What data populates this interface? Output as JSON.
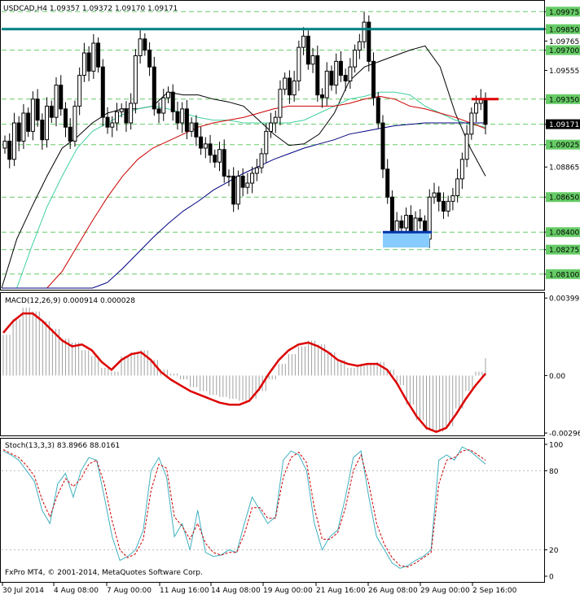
{
  "header": {
    "symbol_line": "USDCAD,H4  1.09357 1.09372 1.09170 1.09171"
  },
  "footer": {
    "copyright": "FxPro MT4, © 2001-2014, MetaQuotes Software Corp."
  },
  "colors": {
    "background": "#ffffff",
    "candle": "#000000",
    "ma_black": "#000000",
    "ma_teal": "#40d0a0",
    "ma_red": "#cc0000",
    "ma_blue": "#000080",
    "level_green": "#66cc66",
    "resistance": "#008080",
    "macd_hist": "#a0a0a0",
    "macd_signal": "#dd0000",
    "stoch_main": "#40b0c0",
    "stoch_signal": "#cc0000",
    "current_price_box": "#000000",
    "box_fill": "#88ccff"
  },
  "chart_data": [
    {
      "type": "candlestick",
      "name": "USDCAD,H4",
      "ylim": [
        1.08,
        1.1
      ],
      "price_labels": [
        "1.09975",
        "1.09850",
        "1.09765",
        "1.09700",
        "1.09555",
        "1.09350",
        "1.09171",
        "1.09025",
        "1.08865",
        "1.08650",
        "1.08400",
        "1.08275",
        "1.08100"
      ],
      "price_values": [
        1.09975,
        1.0985,
        1.09765,
        1.097,
        1.09555,
        1.0935,
        1.09171,
        1.09025,
        1.08865,
        1.0865,
        1.084,
        1.08275,
        1.081
      ],
      "highlighted_levels": [
        "1.09975",
        "1.09850",
        "1.09700",
        "1.09350",
        "1.09171",
        "1.09025",
        "1.08650",
        "1.08400",
        "1.08275",
        "1.08100"
      ],
      "current_price": "1.09171",
      "resistance_level": 1.0985,
      "support_box": {
        "top": 1.084,
        "bottom": 1.0829
      },
      "close_series": [
        1.0905,
        1.0892,
        1.0918,
        1.0905,
        1.0925,
        1.0912,
        1.0935,
        1.092,
        1.0906,
        1.093,
        1.0922,
        1.0945,
        1.0928,
        1.0915,
        1.0905,
        1.093,
        1.0952,
        1.0968,
        1.0955,
        1.0975,
        1.0958,
        1.0922,
        1.0915,
        1.0918,
        1.0926,
        1.0928,
        1.0918,
        1.0932,
        1.0966,
        1.0978,
        1.097,
        1.0958,
        1.0928,
        1.0925,
        1.0936,
        1.094,
        1.0926,
        1.0918,
        1.0928,
        1.0912,
        1.0918,
        1.0908,
        1.09,
        1.0903,
        1.0895,
        1.089,
        1.0899,
        1.088,
        1.088,
        1.086,
        1.088,
        1.0872,
        1.0875,
        1.0882,
        1.0886,
        1.0896,
        1.0912,
        1.0918,
        1.0922,
        1.0942,
        1.095,
        1.0938,
        1.0948,
        1.0972,
        1.098,
        1.096,
        1.0966,
        1.0938,
        1.0936,
        1.0955,
        1.0945,
        1.0962,
        1.0952,
        1.0948,
        1.0958,
        1.097,
        1.0976,
        1.099,
        1.0962,
        1.0936,
        1.0918,
        1.0885,
        1.0865,
        1.084,
        1.0848,
        1.0843,
        1.0852,
        1.084,
        1.085,
        1.0848,
        1.0835,
        1.0865,
        1.0868,
        1.0862,
        1.0855,
        1.0862,
        1.0866,
        1.0878,
        1.0892,
        1.091,
        1.0925,
        1.0932,
        1.0935,
        1.0917
      ],
      "moving_averages": [
        {
          "color_key": "ma_black",
          "values": [
            1.08,
            1.0835,
            1.0858,
            1.088,
            1.09,
            1.0908,
            1.0918,
            1.0925,
            1.0928,
            1.0928,
            1.093,
            1.094,
            1.0938,
            1.0938,
            1.0935,
            1.0933,
            1.093,
            1.092,
            1.091,
            1.0902,
            1.0903,
            1.091,
            1.0925,
            1.0948,
            1.0958,
            1.0962,
            1.0966,
            1.097,
            1.0973,
            1.0958,
            1.0925,
            1.09,
            1.088
          ]
        },
        {
          "color_key": "ma_teal",
          "values": [
            1.08,
            1.08,
            1.083,
            1.0858,
            1.088,
            1.09,
            1.0912,
            1.0918,
            1.0924,
            1.0928,
            1.093,
            1.0928,
            1.0925,
            1.0922,
            1.092,
            1.092,
            1.0918,
            1.0918,
            1.0918,
            1.0918,
            1.092,
            1.0925,
            1.093,
            1.0935,
            1.0937,
            1.094,
            1.094,
            1.0938,
            1.093,
            1.0925,
            1.092,
            1.0917,
            1.0915
          ]
        },
        {
          "color_key": "ma_red",
          "values": [
            1.08,
            1.08,
            1.08,
            1.08,
            1.0812,
            1.083,
            1.0848,
            1.0865,
            1.088,
            1.0892,
            1.09,
            1.0905,
            1.091,
            1.0915,
            1.0918,
            1.092,
            1.0922,
            1.0925,
            1.0928,
            1.093,
            1.093,
            1.093,
            1.093,
            1.0932,
            1.0935,
            1.0937,
            1.0935,
            1.093,
            1.0928,
            1.0925,
            1.0922,
            1.0918,
            1.0914
          ]
        },
        {
          "color_key": "ma_blue",
          "values": [
            1.08,
            1.08,
            1.08,
            1.08,
            1.08,
            1.08,
            1.08,
            1.0804,
            1.0814,
            1.0825,
            1.0836,
            1.0846,
            1.0855,
            1.0862,
            1.087,
            1.0876,
            1.0882,
            1.0887,
            1.0892,
            1.0896,
            1.09,
            1.0903,
            1.0906,
            1.091,
            1.0912,
            1.0914,
            1.0916,
            1.0917,
            1.0918,
            1.0918,
            1.0918,
            1.0918,
            1.0918
          ]
        }
      ]
    },
    {
      "type": "histogram",
      "name": "MACD(12,26,9) 0.000914 0.000028",
      "title": "MACD(12,26,9) 0.000914 0.000028",
      "ylim": [
        -0.003,
        0.004
      ],
      "tick_labels": [
        "0.00399",
        "0.00",
        "-0.00296"
      ],
      "tick_values": [
        0.00399,
        0.0,
        -0.00296
      ],
      "histogram": [
        0.0021,
        0.0029,
        0.0035,
        0.0033,
        0.0028,
        0.0024,
        0.0019,
        0.0017,
        0.0013,
        0.001,
        0.0004,
        0.0002,
        0.001,
        0.0012,
        0.0013,
        0.0008,
        0.0003,
        0.0001,
        -0.0002,
        -0.0006,
        -0.0008,
        -0.001,
        -0.0011,
        -0.0012,
        -0.0013,
        -0.0012,
        -0.0008,
        -0.0002,
        0.0006,
        0.0011,
        0.0015,
        0.0018,
        0.0016,
        0.0012,
        0.0008,
        0.0004,
        0.0005,
        0.0006,
        0.0007,
        0.0003,
        -0.0005,
        -0.0015,
        -0.0023,
        -0.0028,
        -0.0029,
        -0.0026,
        -0.0017,
        -0.0008,
        0.0002,
        0.0009
      ],
      "signal": [
        0.0022,
        0.0028,
        0.0032,
        0.0032,
        0.0028,
        0.0023,
        0.0018,
        0.0015,
        0.0016,
        0.0013,
        0.0007,
        0.0003,
        0.0008,
        0.0011,
        0.0012,
        0.0008,
        0.0002,
        -0.0002,
        -0.0005,
        -0.0008,
        -0.001,
        -0.0012,
        -0.0014,
        -0.0015,
        -0.0015,
        -0.0013,
        -0.0007,
        0.0001,
        0.0008,
        0.0013,
        0.0016,
        0.0017,
        0.0015,
        0.0012,
        0.0008,
        0.0006,
        0.0005,
        0.0006,
        0.0006,
        0.0003,
        -0.0004,
        -0.0013,
        -0.0021,
        -0.0027,
        -0.0029,
        -0.0027,
        -0.002,
        -0.0012,
        -0.0005,
        0.0001
      ]
    },
    {
      "type": "line",
      "name": "Stoch(13,3,3) 83.8966 88.0161",
      "title": "Stoch(13,3,3) 83.8966 88.0161",
      "ylim": [
        0,
        100
      ],
      "tick_labels": [
        "100",
        "80",
        "20",
        "0"
      ],
      "tick_values": [
        100,
        80,
        20,
        0
      ],
      "series": [
        {
          "color_key": "stoch_main",
          "values": [
            95,
            92,
            88,
            80,
            72,
            50,
            40,
            70,
            78,
            60,
            80,
            90,
            88,
            60,
            30,
            12,
            15,
            20,
            35,
            80,
            90,
            75,
            30,
            40,
            20,
            50,
            18,
            15,
            16,
            20,
            18,
            40,
            60,
            50,
            40,
            45,
            88,
            95,
            92,
            80,
            40,
            20,
            30,
            35,
            60,
            90,
            95,
            60,
            30,
            20,
            10,
            6,
            8,
            12,
            15,
            20,
            88,
            92,
            88,
            98,
            95,
            90,
            85
          ]
        },
        {
          "color_key": "stoch_signal",
          "values": [
            96,
            93,
            90,
            84,
            76,
            58,
            45,
            62,
            74,
            68,
            74,
            85,
            88,
            70,
            42,
            20,
            14,
            17,
            28,
            65,
            85,
            82,
            45,
            38,
            28,
            40,
            25,
            18,
            16,
            18,
            18,
            32,
            52,
            52,
            44,
            44,
            75,
            90,
            94,
            86,
            52,
            28,
            28,
            33,
            52,
            80,
            92,
            70,
            40,
            24,
            14,
            8,
            7,
            10,
            14,
            18,
            70,
            88,
            90,
            95,
            96,
            92,
            88
          ]
        }
      ]
    }
  ],
  "x_axis": {
    "labels": [
      "30 Jul 2014",
      "4 Aug 08:00",
      "7 Aug 00:00",
      "11 Aug 16:00",
      "14 Aug 08:00",
      "19 Aug 00:00",
      "21 Aug 16:00",
      "26 Aug 08:00",
      "29 Aug 00:00",
      "2 Sep 16:00"
    ]
  }
}
